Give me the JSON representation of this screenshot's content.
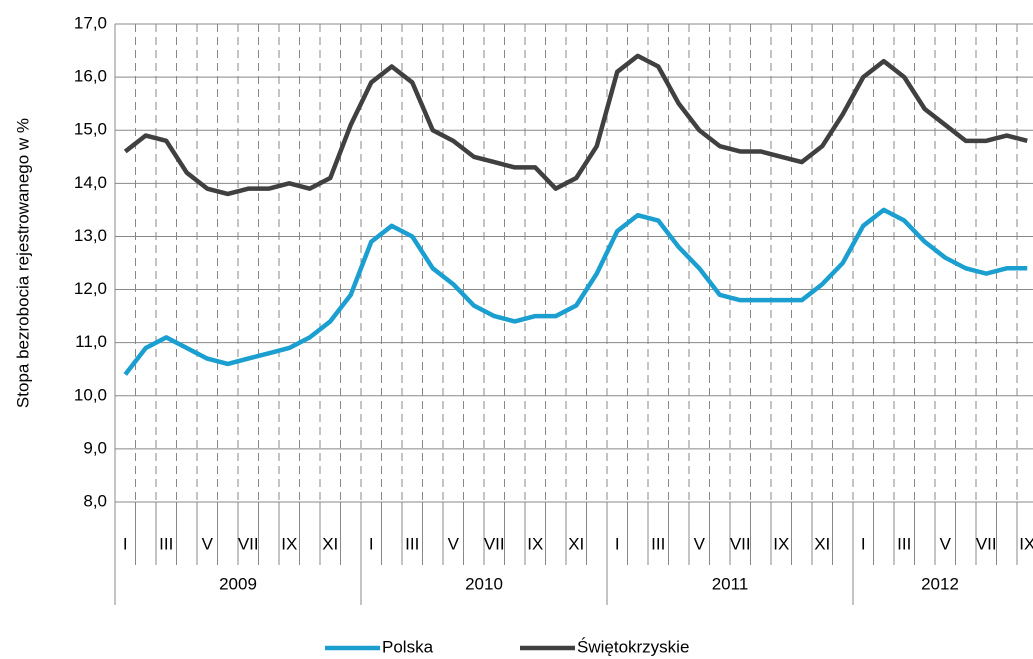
{
  "chart_data": {
    "type": "line",
    "y_label": "Stopa bezrobocia rejestrowanego w %",
    "categories": [
      "I",
      null,
      "III",
      null,
      "V",
      null,
      "VII",
      null,
      "IX",
      null,
      "XI",
      null,
      "I",
      null,
      "III",
      null,
      "V",
      null,
      "VII",
      null,
      "IX",
      null,
      "XI",
      null,
      "I",
      null,
      "III",
      null,
      "V",
      null,
      "VII",
      null,
      "IX",
      null,
      "XI",
      null,
      "I",
      null,
      "III",
      null,
      "V",
      null,
      "VII",
      null,
      "IX"
    ],
    "groups": [
      "2009",
      "2010",
      "2011",
      "2012"
    ],
    "series": [
      {
        "name": "Polska",
        "color": "#1a9fd0",
        "values": [
          10.4,
          10.9,
          11.1,
          10.9,
          10.7,
          10.6,
          10.7,
          10.8,
          10.9,
          11.1,
          11.4,
          11.9,
          12.9,
          13.2,
          13.0,
          12.4,
          12.1,
          11.7,
          11.5,
          11.4,
          11.5,
          11.5,
          11.7,
          12.3,
          13.1,
          13.4,
          13.3,
          12.8,
          12.4,
          11.9,
          11.8,
          11.8,
          11.8,
          11.8,
          12.1,
          12.5,
          13.2,
          13.5,
          13.3,
          12.9,
          12.6,
          12.4,
          12.3,
          12.4,
          12.4
        ]
      },
      {
        "name": "Świętokrzyskie",
        "color": "#404040",
        "values": [
          14.6,
          14.9,
          14.8,
          14.2,
          13.9,
          13.8,
          13.9,
          13.9,
          14.0,
          13.9,
          14.1,
          15.1,
          15.9,
          16.2,
          15.9,
          15.0,
          14.8,
          14.5,
          14.4,
          14.3,
          14.3,
          13.9,
          14.1,
          14.7,
          16.1,
          16.4,
          16.2,
          15.5,
          15.0,
          14.7,
          14.6,
          14.6,
          14.5,
          14.4,
          14.7,
          15.3,
          16.0,
          16.3,
          16.0,
          15.4,
          15.1,
          14.8,
          14.8,
          14.9,
          14.8
        ]
      }
    ],
    "ylim": [
      8,
      17
    ],
    "yticks": [
      {
        "value": 8,
        "label": "8,0"
      },
      {
        "value": 9,
        "label": "9,0"
      },
      {
        "value": 10,
        "label": "10,0"
      },
      {
        "value": 11,
        "label": "11,0"
      },
      {
        "value": 12,
        "label": "12,0"
      },
      {
        "value": 13,
        "label": "13,0"
      },
      {
        "value": 14,
        "label": "14,0"
      },
      {
        "value": 15,
        "label": "15,0"
      },
      {
        "value": 16,
        "label": "16,0"
      },
      {
        "value": 17,
        "label": "17,0"
      }
    ],
    "grid": true,
    "legend": "bottom"
  }
}
